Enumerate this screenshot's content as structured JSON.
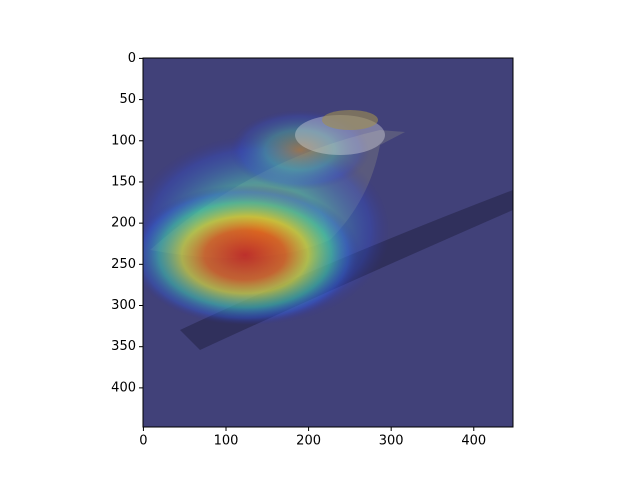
{
  "chart_data": {
    "type": "image",
    "xlim": [
      -0.5,
      447.5
    ],
    "ylim": [
      447.5,
      -0.5
    ],
    "xticks": [
      0,
      100,
      200,
      300,
      400
    ],
    "yticks": [
      0,
      50,
      100,
      150,
      200,
      250,
      300,
      350,
      400
    ],
    "colormap": "jet"
  }
}
